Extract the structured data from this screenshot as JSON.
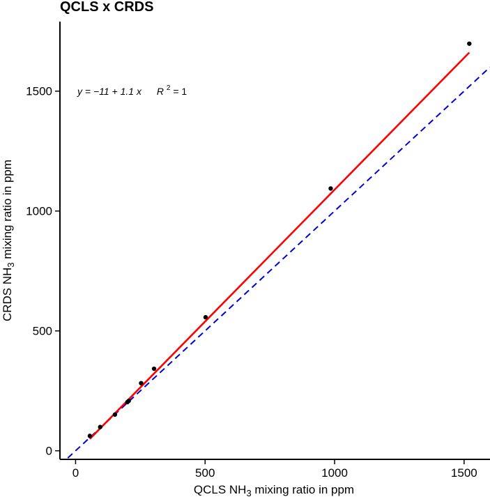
{
  "chart_data": {
    "type": "scatter",
    "title": "QCLS x CRDS",
    "xlabel": {
      "prefix": "QCLS NH",
      "subscript": "3",
      "suffix": " mixing ratio in ppm"
    },
    "ylabel": {
      "prefix": "CRDS NH",
      "subscript": "3",
      "suffix": " mixing ratio in ppm"
    },
    "xlim": [
      -55,
      1600
    ],
    "ylim": [
      -30,
      1790
    ],
    "x_ticks": [
      0,
      500,
      1000,
      1500
    ],
    "y_ticks": [
      0,
      500,
      1000,
      1500
    ],
    "grid": false,
    "points": [
      {
        "x": 55,
        "y": 62
      },
      {
        "x": 95,
        "y": 99
      },
      {
        "x": 152,
        "y": 151
      },
      {
        "x": 200,
        "y": 203
      },
      {
        "x": 205,
        "y": 208
      },
      {
        "x": 253,
        "y": 282
      },
      {
        "x": 303,
        "y": 342
      },
      {
        "x": 502,
        "y": 557
      },
      {
        "x": 985,
        "y": 1094
      },
      {
        "x": 1520,
        "y": 1698
      }
    ],
    "regression": {
      "intercept": -11,
      "slope": 1.1,
      "x_range": [
        55,
        1520
      ],
      "color": "#ff0000"
    },
    "identity_line": {
      "slope": 1,
      "intercept": 0,
      "color": "#0000dd",
      "style": "dashed"
    },
    "point_color": "#000000",
    "annotation": {
      "equation": "y = −11 + 1.1 x",
      "r_squared": "R",
      "r_squared_exp": "2",
      "r_squared_value": " = 1"
    }
  }
}
